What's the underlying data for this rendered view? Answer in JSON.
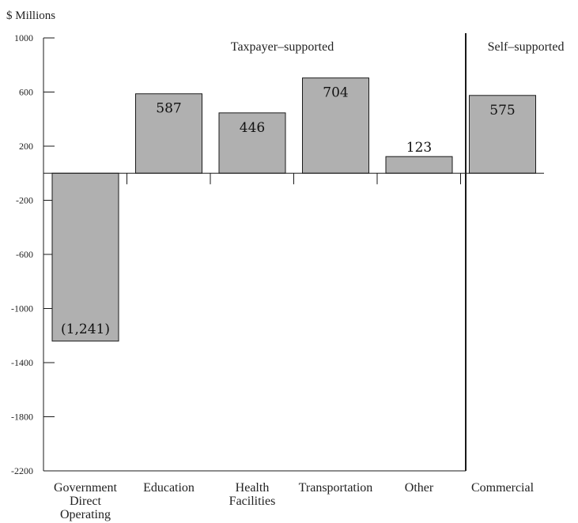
{
  "chart_data": {
    "type": "bar",
    "title": "",
    "unit_label": "$ Millions",
    "xlabel": "",
    "ylabel": "",
    "ylim": [
      -2200,
      1000
    ],
    "yticks": [
      1000,
      600,
      200,
      -200,
      -600,
      -1000,
      -1400,
      -1800,
      -2200
    ],
    "categories": [
      "Government Direct Operating",
      "Education",
      "Health Facilities",
      "Transportation",
      "Other",
      "Commercial"
    ],
    "category_lines": [
      [
        "Government",
        "Direct",
        "Operating"
      ],
      [
        "Education"
      ],
      [
        "Health",
        "Facilities"
      ],
      [
        "Transportation"
      ],
      [
        "Other"
      ],
      [
        "Commercial"
      ]
    ],
    "values": [
      -1241,
      587,
      446,
      704,
      123,
      575
    ],
    "data_labels": [
      "(1,241)",
      "587",
      "446",
      "704",
      "123",
      "575"
    ],
    "sections": [
      {
        "label": "Taxpayer–supported",
        "categories": [
          0,
          1,
          2,
          3,
          4
        ]
      },
      {
        "label": "Self–supported",
        "categories": [
          5
        ]
      }
    ],
    "grid": false,
    "colors": {
      "bar_fill": "#b0b0b0",
      "bar_stroke": "#1a1a1a",
      "axis": "#1a1a1a"
    }
  }
}
